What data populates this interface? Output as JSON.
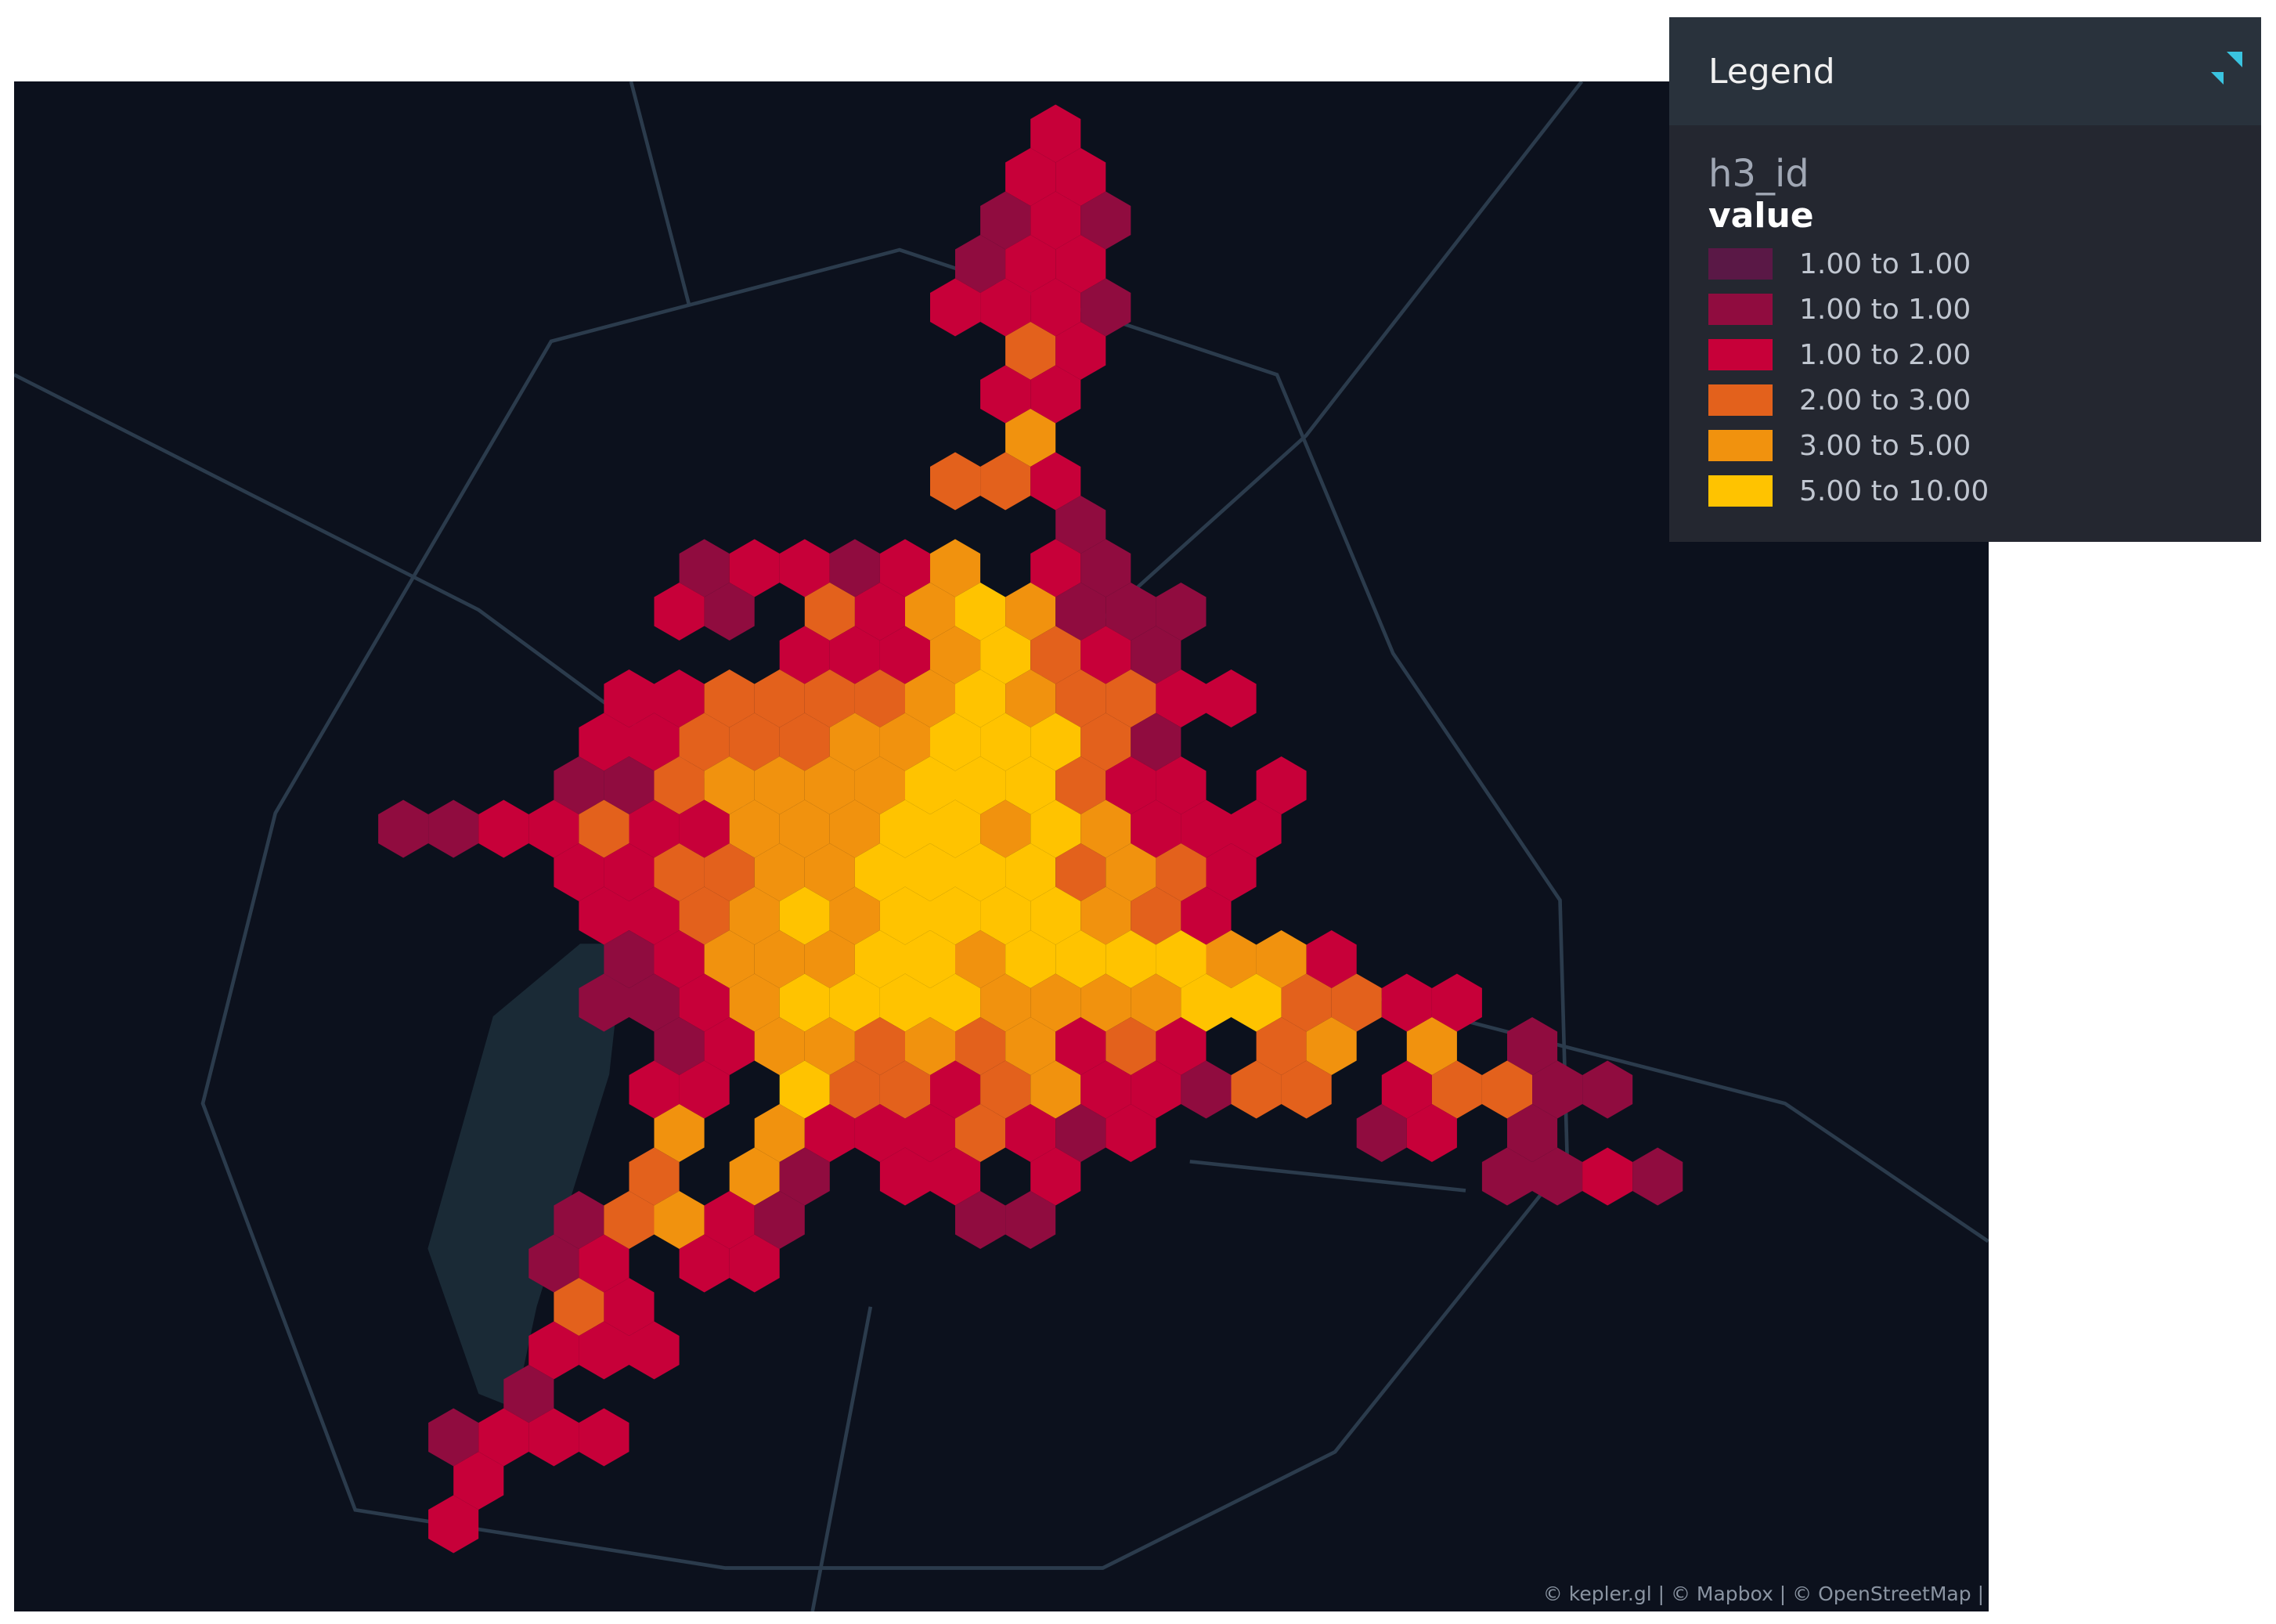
{
  "legend": {
    "title": "Legend",
    "field": "h3_id",
    "measure": "value",
    "items": [
      {
        "label": "1.00 to 1.00",
        "color": "#5a1846"
      },
      {
        "label": "1.00 to 1.00",
        "color": "#900c3f"
      },
      {
        "label": "1.00 to 2.00",
        "color": "#c70039"
      },
      {
        "label": "2.00 to 3.00",
        "color": "#e3611c"
      },
      {
        "label": "3.00 to 5.00",
        "color": "#f1920e"
      },
      {
        "label": "5.00 to 10.00",
        "color": "#ffc300"
      }
    ]
  },
  "attribution": "© kepler.gl | © Mapbox | © OpenStreetMap |"
}
